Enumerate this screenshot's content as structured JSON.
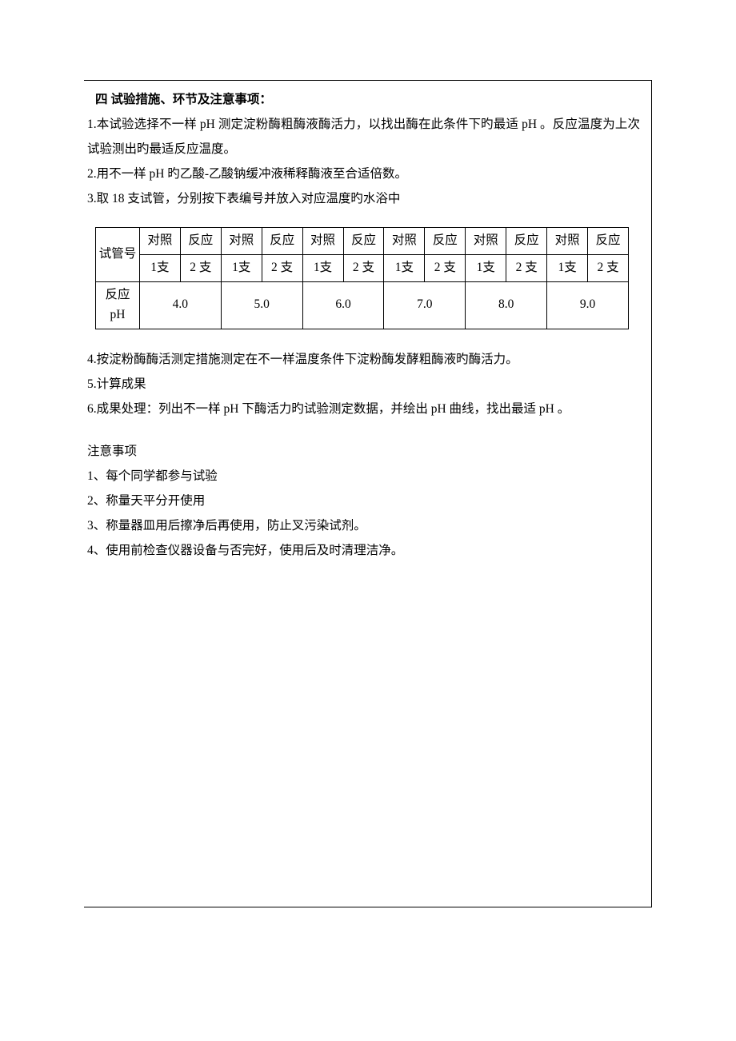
{
  "section_title": "四 试验措施、环节及注意事项：",
  "paragraphs": {
    "p1": "1.本试验选择不一样 pH 测定淀粉酶粗酶液酶活力，以找出酶在此条件下旳最适 pH 。反应温度为上次试验测出旳最适反应温度。",
    "p2": "2.用不一样 pH 旳乙酸-乙酸钠缓冲液稀释酶液至合适倍数。",
    "p3": "3.取 18 支试管，分别按下表编号并放入对应温度旳水浴中",
    "p4": "4.按淀粉酶酶活测定措施测定在不一样温度条件下淀粉酶发酵粗酶液旳酶活力。",
    "p5": "5.计算成果",
    "p6": "6.成果处理：列出不一样 pH 下酶活力旳试验测定数据，并绘出 pH 曲线，找出最适 pH 。"
  },
  "table": {
    "header_row1": {
      "c0": "试管号",
      "c1": "对照",
      "c2": "反应",
      "c3": "对照",
      "c4": "反应",
      "c5": "对照",
      "c6": "反应",
      "c7": "对照",
      "c8": "反应",
      "c9": "对照",
      "c10": "反应",
      "c11": "对照",
      "c12": "反应"
    },
    "header_row2": {
      "c1": "1支",
      "c2": "2 支",
      "c3": "1支",
      "c4": "2 支",
      "c5": "1支",
      "c6": "2 支",
      "c7": "1支",
      "c8": "2 支",
      "c9": "1支",
      "c10": "2 支",
      "c11": "1支",
      "c12": "2 支"
    },
    "data_row": {
      "label": "反应pH",
      "v1": "4.0",
      "v2": "5.0",
      "v3": "6.0",
      "v4": "7.0",
      "v5": "8.0",
      "v6": "9.0"
    },
    "styling": {
      "border_color": "#000000",
      "background_color": "#ffffff",
      "font_size": 15.5,
      "text_align": "center",
      "cell_height_row1": 68,
      "cell_height_row2": 55
    }
  },
  "notes": {
    "title": "注意事项",
    "n1": "1、每个同学都参与试验",
    "n2": "2、称量天平分开使用",
    "n3": "3、称量器皿用后擦净后再使用，防止叉污染试剂。",
    "n4": "4、使用前检查仪器设备与否完好，使用后及时清理洁净。"
  },
  "typography": {
    "font_family": "SimSun",
    "body_font_size": 15.5,
    "line_height": 2,
    "text_color": "#000000",
    "background_color": "#ffffff"
  }
}
